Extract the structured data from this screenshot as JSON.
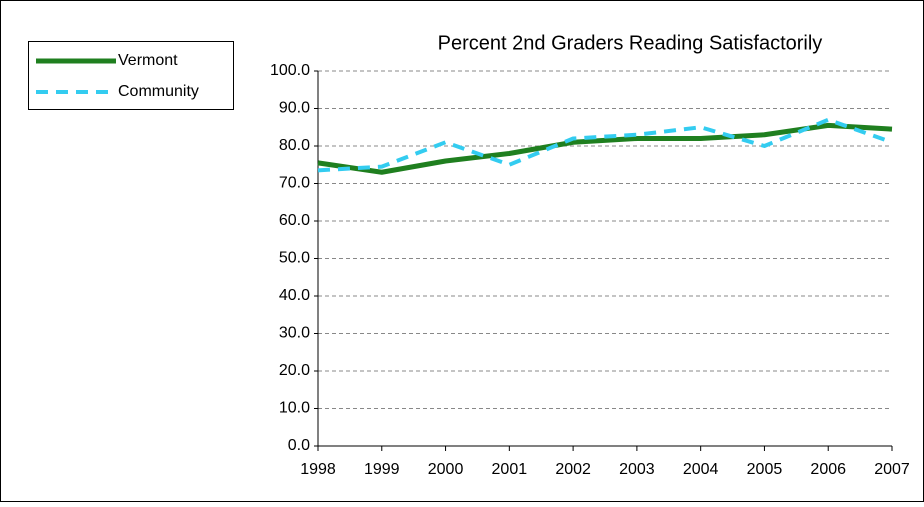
{
  "chart_data": {
    "type": "line",
    "title": "Percent 2nd Graders Reading Satisfactorily",
    "x": [
      1998,
      1999,
      2000,
      2001,
      2002,
      2003,
      2004,
      2005,
      2006,
      2007
    ],
    "series": [
      {
        "name": "Vermont",
        "color": "#1f7f1f",
        "dash": false,
        "values": [
          75.5,
          73,
          76,
          78,
          81,
          82,
          82,
          83,
          85.5,
          84.5
        ]
      },
      {
        "name": "Community",
        "color": "#33ccf0",
        "dash": true,
        "values": [
          73.5,
          74.5,
          81,
          75,
          82,
          83,
          85,
          80,
          87,
          81
        ]
      }
    ],
    "xlim": [
      1998,
      2007
    ],
    "xticks": [
      1998,
      1999,
      2000,
      2001,
      2002,
      2003,
      2004,
      2005,
      2006,
      2007
    ],
    "ylim": [
      0,
      100
    ],
    "yticks": [
      {
        "value": 0,
        "label": "0.0"
      },
      {
        "value": 10,
        "label": "10.0"
      },
      {
        "value": 20,
        "label": "20.0"
      },
      {
        "value": 30,
        "label": "30.0"
      },
      {
        "value": 40,
        "label": "40.0"
      },
      {
        "value": 50,
        "label": "50.0"
      },
      {
        "value": 60,
        "label": "60.0"
      },
      {
        "value": 70,
        "label": "70.0"
      },
      {
        "value": 80,
        "label": "80.0"
      },
      {
        "value": 90,
        "label": "90.0"
      },
      {
        "value": 100,
        "label": "100.0"
      }
    ],
    "grid": true,
    "legend": "top-left"
  }
}
